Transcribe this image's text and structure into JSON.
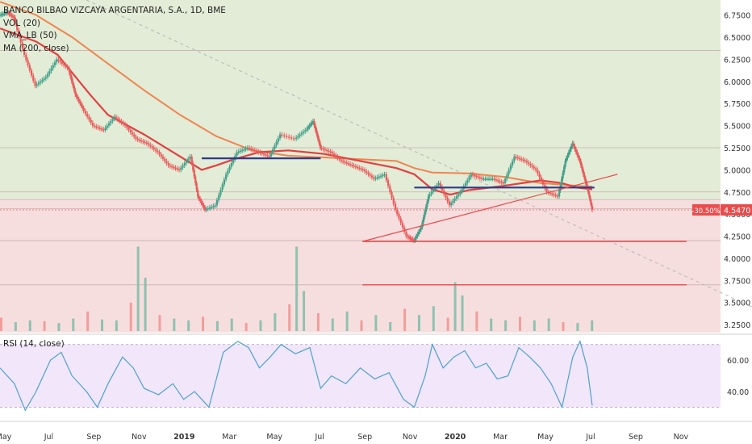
{
  "chart_data": {
    "type": "candlestick",
    "title": "BANCO BILBAO VIZCAYA ARGENTARIA, S.A., 1D, BME",
    "indicators": [
      "VOL (20)",
      "VMA_LB (50)",
      "MA (200, close)"
    ],
    "rsi_label": "RSI (14, close)",
    "x_tick_labels": [
      "May",
      "Jul",
      "Sep",
      "Nov",
      "2019",
      "Mar",
      "May",
      "Jul",
      "Sep",
      "Nov",
      "2020",
      "Mar",
      "May",
      "Jul",
      "Sep",
      "Nov"
    ],
    "y_tick_labels": [
      "6.7500",
      "6.5000",
      "6.2500",
      "6.0000",
      "5.7500",
      "5.5000",
      "5.2500",
      "5.0000",
      "4.7500",
      "4.5000",
      "4.2500",
      "4.0000",
      "3.7500",
      "3.5000",
      "3.2500"
    ],
    "y_ticks": [
      6.75,
      6.5,
      6.25,
      6.0,
      5.75,
      5.5,
      5.25,
      5.0,
      4.75,
      4.5,
      4.25,
      4.0,
      3.75,
      3.5,
      3.25
    ],
    "ylim": [
      3.16,
      6.92
    ],
    "rsi_tick_labels": [
      "60.00",
      "40.00"
    ],
    "rsi_ticks": [
      60,
      40
    ],
    "rsi_bands": [
      70,
      30
    ],
    "rsi_ylim": [
      22,
      76
    ],
    "last_price": 4.547,
    "last_price_label": "4.5470",
    "change_label": "-30.50%",
    "horizontal_levels": [
      6.35,
      5.25,
      4.75,
      4.665,
      4.56,
      4.2,
      3.7
    ],
    "zone_boundary": 4.665,
    "price_series": [
      [
        0.0,
        6.75
      ],
      [
        0.01,
        6.78
      ],
      [
        0.02,
        6.72
      ],
      [
        0.035,
        6.3
      ],
      [
        0.05,
        5.95
      ],
      [
        0.065,
        6.05
      ],
      [
        0.08,
        6.25
      ],
      [
        0.095,
        6.15
      ],
      [
        0.105,
        5.85
      ],
      [
        0.115,
        5.7
      ],
      [
        0.13,
        5.5
      ],
      [
        0.145,
        5.45
      ],
      [
        0.16,
        5.6
      ],
      [
        0.175,
        5.5
      ],
      [
        0.19,
        5.35
      ],
      [
        0.205,
        5.3
      ],
      [
        0.22,
        5.2
      ],
      [
        0.235,
        5.05
      ],
      [
        0.25,
        5.0
      ],
      [
        0.265,
        5.15
      ],
      [
        0.275,
        4.7
      ],
      [
        0.285,
        4.55
      ],
      [
        0.3,
        4.6
      ],
      [
        0.315,
        4.95
      ],
      [
        0.33,
        5.2
      ],
      [
        0.345,
        5.25
      ],
      [
        0.36,
        5.2
      ],
      [
        0.375,
        5.15
      ],
      [
        0.39,
        5.4
      ],
      [
        0.41,
        5.35
      ],
      [
        0.425,
        5.45
      ],
      [
        0.435,
        5.55
      ],
      [
        0.445,
        5.25
      ],
      [
        0.46,
        5.2
      ],
      [
        0.475,
        5.1
      ],
      [
        0.49,
        5.05
      ],
      [
        0.505,
        5.0
      ],
      [
        0.52,
        4.9
      ],
      [
        0.535,
        4.95
      ],
      [
        0.55,
        4.55
      ],
      [
        0.565,
        4.25
      ],
      [
        0.575,
        4.2
      ],
      [
        0.585,
        4.35
      ],
      [
        0.595,
        4.7
      ],
      [
        0.61,
        4.85
      ],
      [
        0.625,
        4.6
      ],
      [
        0.64,
        4.75
      ],
      [
        0.655,
        4.95
      ],
      [
        0.67,
        4.9
      ],
      [
        0.685,
        4.9
      ],
      [
        0.7,
        4.85
      ],
      [
        0.715,
        5.15
      ],
      [
        0.73,
        5.1
      ],
      [
        0.745,
        5.0
      ],
      [
        0.76,
        4.75
      ],
      [
        0.775,
        4.7
      ],
      [
        0.785,
        5.1
      ],
      [
        0.795,
        5.3
      ],
      [
        0.805,
        5.1
      ],
      [
        0.815,
        4.8
      ],
      [
        0.822,
        4.547
      ]
    ],
    "volume_series": [
      [
        0.0,
        15
      ],
      [
        0.02,
        10
      ],
      [
        0.04,
        12
      ],
      [
        0.06,
        11
      ],
      [
        0.08,
        9
      ],
      [
        0.1,
        14
      ],
      [
        0.12,
        22
      ],
      [
        0.14,
        13
      ],
      [
        0.16,
        12
      ],
      [
        0.18,
        32
      ],
      [
        0.19,
        95
      ],
      [
        0.2,
        60
      ],
      [
        0.22,
        18
      ],
      [
        0.24,
        14
      ],
      [
        0.26,
        12
      ],
      [
        0.28,
        16
      ],
      [
        0.3,
        11
      ],
      [
        0.32,
        14
      ],
      [
        0.34,
        9
      ],
      [
        0.36,
        12
      ],
      [
        0.38,
        20
      ],
      [
        0.4,
        30
      ],
      [
        0.41,
        95
      ],
      [
        0.42,
        45
      ],
      [
        0.44,
        20
      ],
      [
        0.46,
        14
      ],
      [
        0.48,
        22
      ],
      [
        0.5,
        12
      ],
      [
        0.52,
        18
      ],
      [
        0.54,
        10
      ],
      [
        0.56,
        25
      ],
      [
        0.58,
        18
      ],
      [
        0.6,
        28
      ],
      [
        0.62,
        15
      ],
      [
        0.63,
        55
      ],
      [
        0.64,
        40
      ],
      [
        0.66,
        22
      ],
      [
        0.68,
        14
      ],
      [
        0.7,
        12
      ],
      [
        0.72,
        16
      ],
      [
        0.74,
        12
      ],
      [
        0.76,
        14
      ],
      [
        0.78,
        10
      ],
      [
        0.8,
        9
      ],
      [
        0.82,
        12
      ]
    ],
    "ma200_series": [
      [
        0.0,
        6.9
      ],
      [
        0.05,
        6.75
      ],
      [
        0.1,
        6.5
      ],
      [
        0.15,
        6.2
      ],
      [
        0.2,
        5.9
      ],
      [
        0.25,
        5.62
      ],
      [
        0.3,
        5.38
      ],
      [
        0.35,
        5.22
      ],
      [
        0.4,
        5.16
      ],
      [
        0.45,
        5.14
      ],
      [
        0.5,
        5.12
      ],
      [
        0.55,
        5.1
      ],
      [
        0.575,
        5.02
      ],
      [
        0.6,
        4.97
      ],
      [
        0.65,
        4.96
      ],
      [
        0.7,
        4.92
      ],
      [
        0.75,
        4.85
      ],
      [
        0.8,
        4.82
      ],
      [
        0.822,
        4.81
      ]
    ],
    "ma50_series": [
      [
        0.0,
        6.6
      ],
      [
        0.05,
        6.45
      ],
      [
        0.08,
        6.3
      ],
      [
        0.1,
        6.1
      ],
      [
        0.125,
        5.85
      ],
      [
        0.15,
        5.62
      ],
      [
        0.2,
        5.4
      ],
      [
        0.25,
        5.15
      ],
      [
        0.28,
        5.0
      ],
      [
        0.3,
        5.05
      ],
      [
        0.325,
        5.12
      ],
      [
        0.36,
        5.2
      ],
      [
        0.4,
        5.22
      ],
      [
        0.45,
        5.18
      ],
      [
        0.5,
        5.1
      ],
      [
        0.55,
        5.02
      ],
      [
        0.575,
        4.95
      ],
      [
        0.6,
        4.78
      ],
      [
        0.625,
        4.72
      ],
      [
        0.65,
        4.77
      ],
      [
        0.7,
        4.82
      ],
      [
        0.75,
        4.88
      ],
      [
        0.78,
        4.85
      ],
      [
        0.8,
        4.8
      ],
      [
        0.822,
        4.78
      ]
    ],
    "rsi_series": [
      [
        0.0,
        55
      ],
      [
        0.02,
        45
      ],
      [
        0.035,
        28
      ],
      [
        0.05,
        40
      ],
      [
        0.07,
        60
      ],
      [
        0.085,
        65
      ],
      [
        0.1,
        50
      ],
      [
        0.12,
        40
      ],
      [
        0.135,
        30
      ],
      [
        0.15,
        45
      ],
      [
        0.17,
        62
      ],
      [
        0.185,
        55
      ],
      [
        0.2,
        42
      ],
      [
        0.22,
        38
      ],
      [
        0.24,
        45
      ],
      [
        0.255,
        35
      ],
      [
        0.27,
        40
      ],
      [
        0.29,
        30
      ],
      [
        0.31,
        65
      ],
      [
        0.33,
        72
      ],
      [
        0.345,
        68
      ],
      [
        0.36,
        55
      ],
      [
        0.375,
        62
      ],
      [
        0.39,
        70
      ],
      [
        0.41,
        64
      ],
      [
        0.43,
        68
      ],
      [
        0.445,
        42
      ],
      [
        0.46,
        50
      ],
      [
        0.48,
        45
      ],
      [
        0.5,
        55
      ],
      [
        0.52,
        48
      ],
      [
        0.54,
        52
      ],
      [
        0.56,
        35
      ],
      [
        0.575,
        30
      ],
      [
        0.59,
        50
      ],
      [
        0.6,
        70
      ],
      [
        0.615,
        55
      ],
      [
        0.63,
        62
      ],
      [
        0.645,
        66
      ],
      [
        0.66,
        55
      ],
      [
        0.675,
        58
      ],
      [
        0.69,
        48
      ],
      [
        0.705,
        50
      ],
      [
        0.72,
        68
      ],
      [
        0.735,
        62
      ],
      [
        0.75,
        55
      ],
      [
        0.765,
        45
      ],
      [
        0.78,
        30
      ],
      [
        0.795,
        62
      ],
      [
        0.805,
        72
      ],
      [
        0.815,
        55
      ],
      [
        0.822,
        31
      ]
    ],
    "colors": {
      "bg": "#ffffff",
      "green_zone": "#e2ecd6",
      "red_zone": "#f7dede",
      "rsi_band": "#f2e6fb",
      "price_up": "#43a08a",
      "price_down": "#ea5a5a",
      "ma200": "#f08550",
      "ma50": "#e34040",
      "level_line": "#2f3b8c",
      "trend": "#ec4848",
      "rsi_line": "#4ca2cf",
      "vol_up": "#7bbda9",
      "vol_down": "#f0938f",
      "price_tag": "#ea4c4c"
    }
  }
}
